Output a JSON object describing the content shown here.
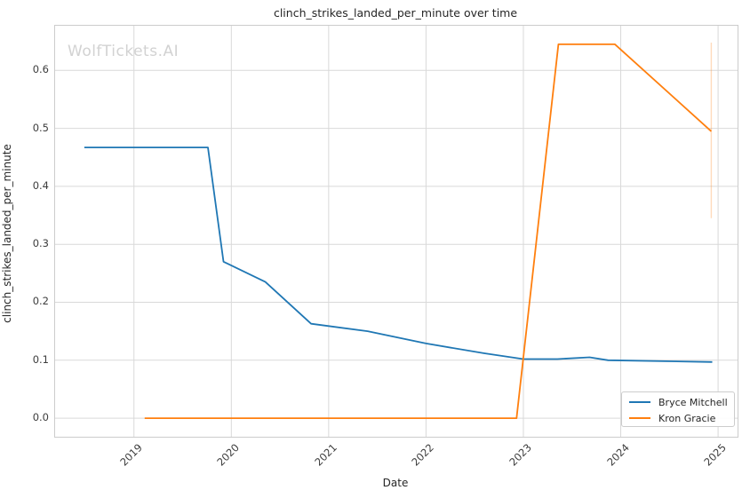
{
  "watermark": "WolfTickets.AI",
  "legend": {
    "position": "lower right",
    "entries": [
      {
        "label": "Bryce Mitchell",
        "color": "#1f77b4"
      },
      {
        "label": "Kron Gracie",
        "color": "#ff7f0e"
      }
    ]
  },
  "colors": {
    "grid": "#d9d9d9",
    "plot_border": "#cccccc",
    "text": "#262626",
    "watermark": "#d2d2d2",
    "series_blue": "#1f77b4",
    "series_orange": "#ff7f0e",
    "error_bar": "rgba(255,127,14,0.28)"
  },
  "chart_data": {
    "type": "line",
    "title": "clinch_strikes_landed_per_minute over time",
    "xlabel": "Date",
    "ylabel": "clinch_strikes_landed_per_minute",
    "grid": true,
    "legend_position": "lower right",
    "xlim": [
      2018.19,
      2025.2
    ],
    "ylim": [
      -0.032,
      0.677
    ],
    "x_ticks": [
      {
        "label": "2019",
        "value": 2019
      },
      {
        "label": "2020",
        "value": 2020
      },
      {
        "label": "2021",
        "value": 2021
      },
      {
        "label": "2022",
        "value": 2022
      },
      {
        "label": "2023",
        "value": 2023
      },
      {
        "label": "2024",
        "value": 2024
      },
      {
        "label": "2025",
        "value": 2025
      }
    ],
    "y_ticks": [
      {
        "label": "0.0",
        "value": 0.0
      },
      {
        "label": "0.1",
        "value": 0.1
      },
      {
        "label": "0.2",
        "value": 0.2
      },
      {
        "label": "0.3",
        "value": 0.3
      },
      {
        "label": "0.4",
        "value": 0.4
      },
      {
        "label": "0.5",
        "value": 0.5
      },
      {
        "label": "0.6",
        "value": 0.6
      }
    ],
    "series": [
      {
        "name": "Bryce Mitchell",
        "color": "#1f77b4",
        "points": [
          [
            2018.49,
            0.467
          ],
          [
            2019.76,
            0.467
          ],
          [
            2019.92,
            0.27
          ],
          [
            2020.35,
            0.235
          ],
          [
            2020.82,
            0.163
          ],
          [
            2021.4,
            0.15
          ],
          [
            2022.0,
            0.129
          ],
          [
            2022.6,
            0.112
          ],
          [
            2023.0,
            0.102
          ],
          [
            2023.35,
            0.102
          ],
          [
            2023.68,
            0.105
          ],
          [
            2023.87,
            0.1
          ],
          [
            2024.94,
            0.097
          ]
        ]
      },
      {
        "name": "Kron Gracie",
        "color": "#ff7f0e",
        "points": [
          [
            2019.11,
            0.0
          ],
          [
            2022.93,
            0.0
          ],
          [
            2023.36,
            0.645
          ],
          [
            2023.94,
            0.645
          ],
          [
            2024.93,
            0.495
          ]
        ],
        "error_bar": {
          "x": 2024.93,
          "y_min": 0.345,
          "y_max": 0.648
        }
      }
    ]
  }
}
